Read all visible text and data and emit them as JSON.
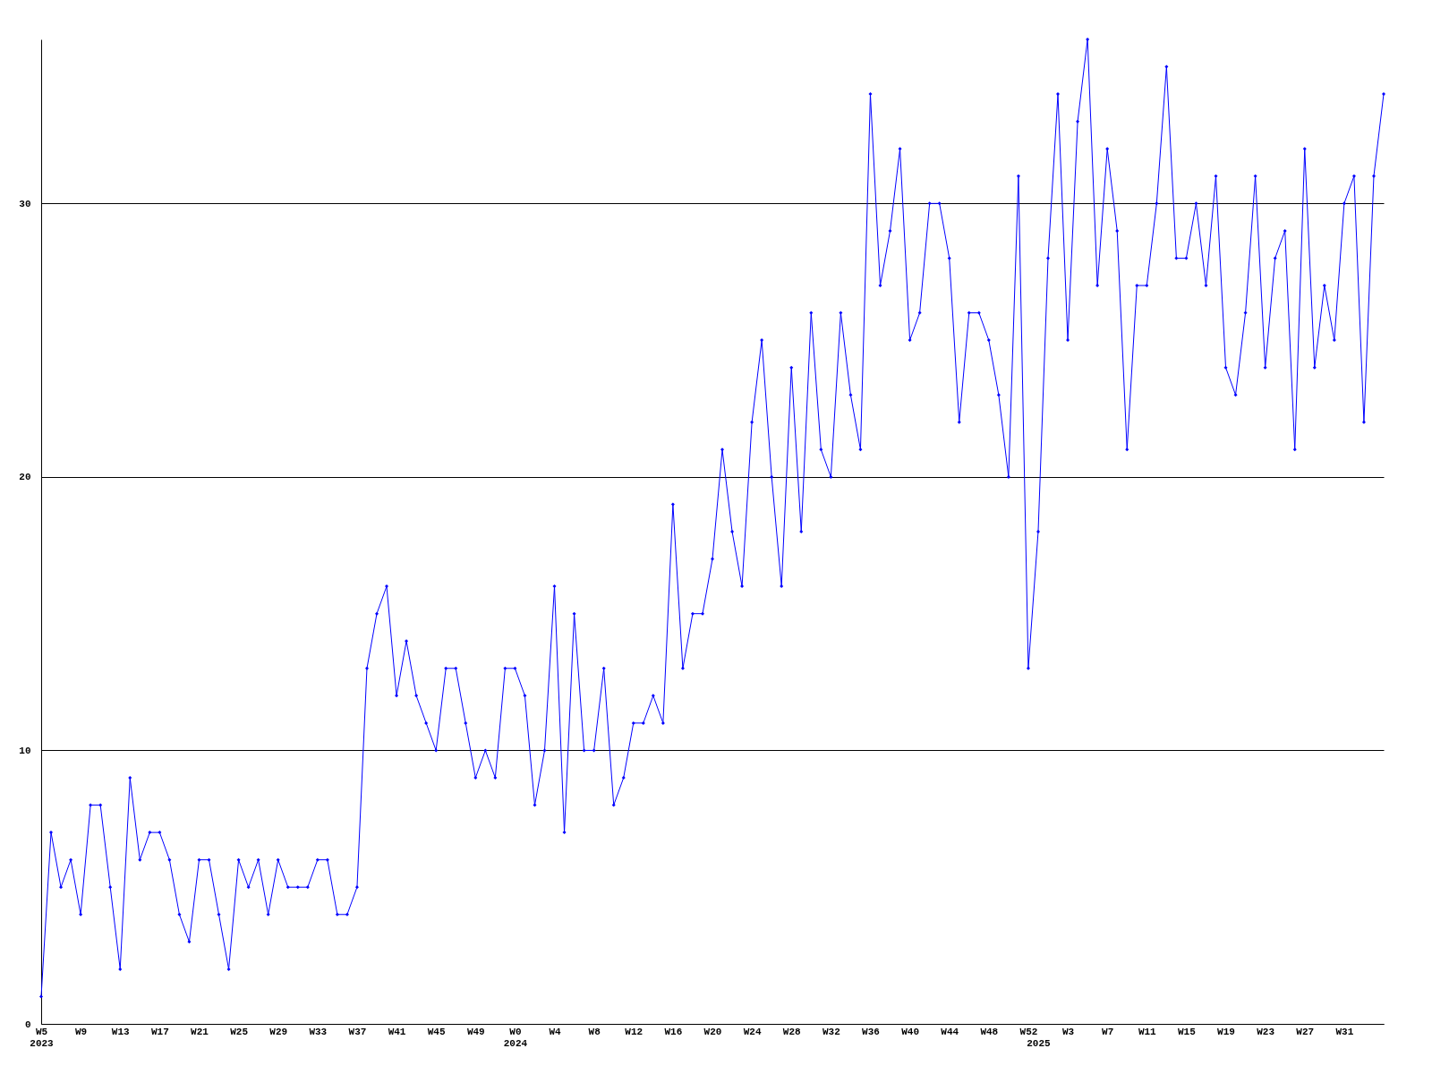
{
  "chart_data": {
    "type": "line",
    "categories": [
      "W5",
      null,
      null,
      null,
      "W9",
      null,
      null,
      null,
      "W13",
      null,
      null,
      null,
      "W17",
      null,
      null,
      null,
      "W21",
      null,
      null,
      null,
      "W25",
      null,
      null,
      null,
      "W29",
      null,
      null,
      null,
      "W33",
      null,
      null,
      null,
      "W37",
      null,
      null,
      null,
      "W41",
      null,
      null,
      null,
      "W45",
      null,
      null,
      null,
      "W49",
      null,
      null,
      null,
      "W0",
      null,
      null,
      null,
      "W4",
      null,
      null,
      null,
      "W8",
      null,
      null,
      null,
      "W12",
      null,
      null,
      null,
      "W16",
      null,
      null,
      null,
      "W20",
      null,
      null,
      null,
      "W24",
      null,
      null,
      null,
      "W28",
      null,
      null,
      null,
      "W32",
      null,
      null,
      null,
      "W36",
      null,
      null,
      null,
      "W40",
      null,
      null,
      null,
      "W44",
      null,
      null,
      null,
      "W48",
      null,
      null,
      null,
      "W52",
      null,
      null,
      null,
      "W3",
      null,
      null,
      null,
      "W7",
      null,
      null,
      null,
      "W11",
      null,
      null,
      null,
      "W15",
      null,
      null,
      null,
      "W19",
      null,
      null,
      null,
      "W23",
      null,
      null,
      null,
      "W27",
      null,
      null,
      null,
      "W31",
      null,
      null,
      null,
      null
    ],
    "series": [
      {
        "color": "#0000ff",
        "values": [
          1,
          7,
          5,
          6,
          4,
          8,
          8,
          5,
          2,
          9,
          6,
          7,
          7,
          6,
          4,
          3,
          6,
          6,
          4,
          2,
          6,
          5,
          6,
          4,
          6,
          5,
          5,
          5,
          6,
          6,
          4,
          4,
          5,
          13,
          15,
          16,
          12,
          14,
          12,
          11,
          10,
          13,
          13,
          11,
          9,
          10,
          9,
          13,
          13,
          12,
          8,
          10,
          16,
          7,
          15,
          10,
          10,
          13,
          8,
          9,
          11,
          11,
          12,
          11,
          19,
          13,
          15,
          15,
          17,
          21,
          18,
          16,
          22,
          25,
          20,
          16,
          24,
          18,
          26,
          21,
          20,
          26,
          23,
          21,
          34,
          27,
          29,
          32,
          25,
          26,
          30,
          30,
          28,
          22,
          26,
          26,
          25,
          23,
          20,
          31,
          13,
          18,
          28,
          34,
          25,
          33,
          36,
          27,
          32,
          29,
          21,
          27,
          27,
          30,
          35,
          28,
          28,
          30,
          27,
          31,
          24,
          23,
          26,
          31,
          24,
          28,
          29,
          21,
          32,
          24,
          27,
          25,
          30,
          31,
          22,
          31,
          34
        ]
      }
    ],
    "ylim": [
      0,
      36
    ],
    "yticks": [
      0,
      10,
      20,
      30
    ],
    "grid": "y",
    "marker": "diamond",
    "line_style": "solid",
    "annotations": [
      "2023",
      "2024",
      "2025"
    ]
  }
}
